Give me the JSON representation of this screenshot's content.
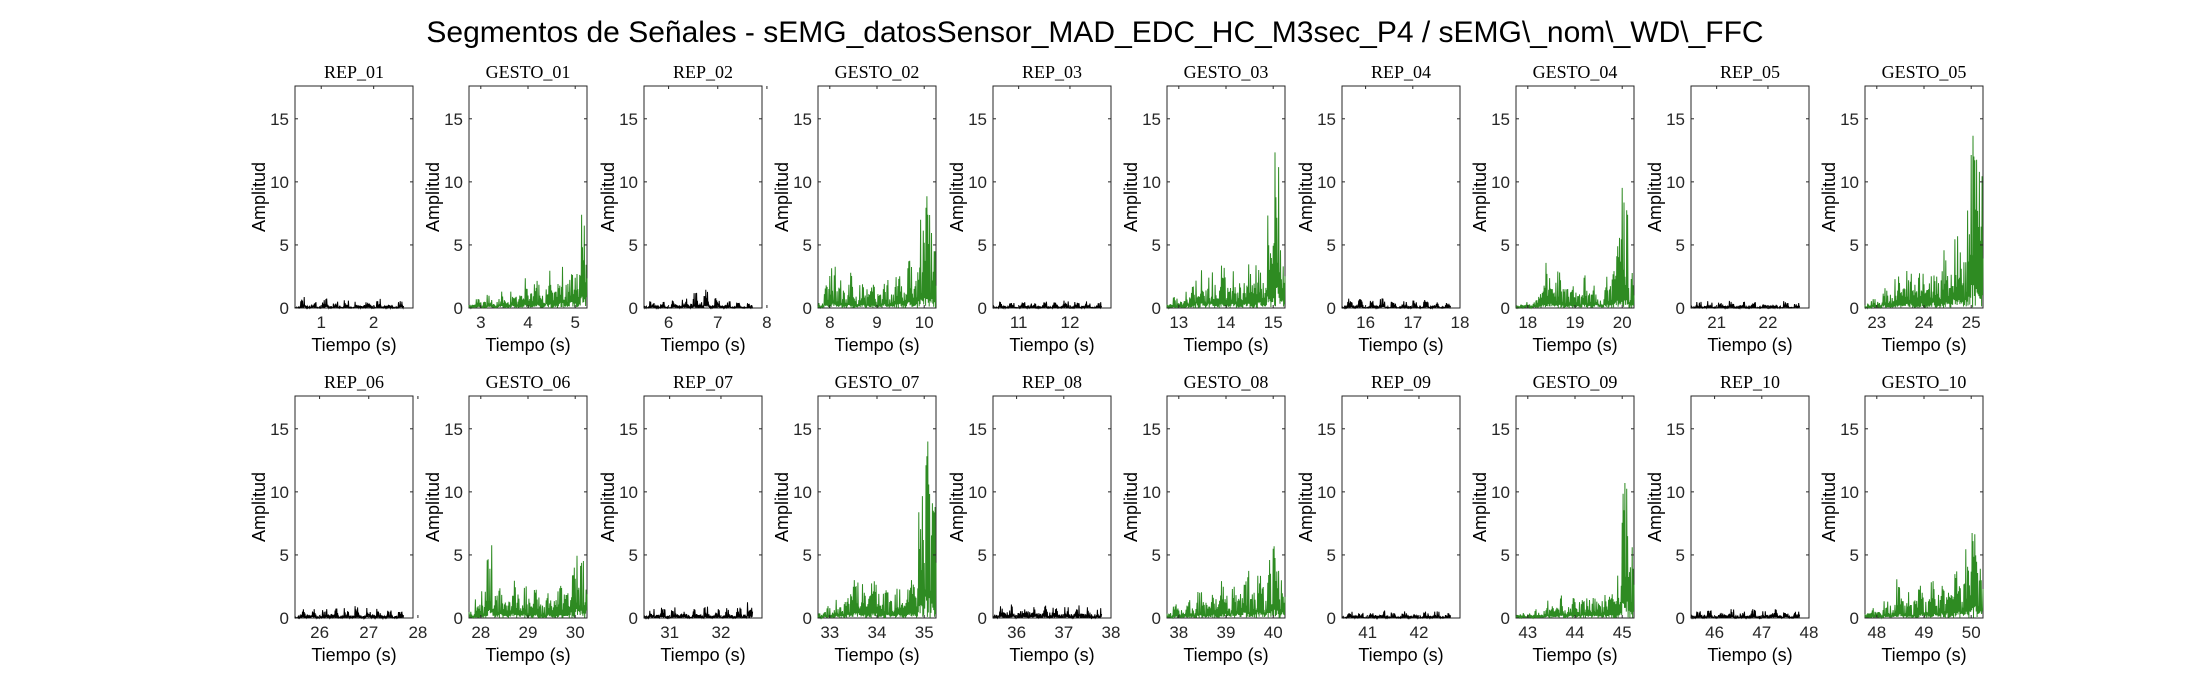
{
  "figure": {
    "title": "Segmentos de Señales - sEMG_datosSensor_MAD_EDC_HC_M3sec_P4 / sEMG\\_nom\\_WD\\_FFC",
    "colors": {
      "rep": "#000000",
      "gesto": "#2e8b22"
    }
  },
  "chart_data": [
    {
      "type": "line",
      "title": "REP_01",
      "kind": "rep",
      "xlabel": "Tiempo (s)",
      "ylabel": "Amplitud",
      "xlim": [
        0.5,
        2.75
      ],
      "ylim": [
        0,
        17.6
      ],
      "xticks": [
        1,
        2
      ],
      "yticks": [
        0,
        5,
        10,
        15
      ],
      "grid": false,
      "series": [
        {
          "values": [
            0.12,
            0.92,
            0.18,
            0.6,
            0.1,
            0.8,
            0.2,
            0.55,
            0.15,
            0.7,
            0.1,
            0.65,
            0.25,
            0.5,
            0.12,
            0.75,
            0.2,
            0.45,
            0.1,
            0.6
          ]
        }
      ]
    },
    {
      "type": "line",
      "title": "GESTO_01",
      "kind": "gesto",
      "xlabel": "Tiempo (s)",
      "ylabel": "Amplitud",
      "xlim": [
        2.75,
        5.25
      ],
      "ylim": [
        0,
        17.6
      ],
      "xticks": [
        3,
        4,
        5
      ],
      "yticks": [
        0,
        5,
        10,
        15
      ],
      "grid": false,
      "series": [
        {
          "values": [
            0.3,
            0.9,
            0.5,
            1.1,
            0.6,
            1.5,
            0.8,
            1.9,
            1.0,
            2.4,
            1.2,
            2.7,
            1.4,
            3.0,
            1.6,
            3.4,
            2.0,
            4.2,
            3.0,
            8.6
          ]
        }
      ]
    },
    {
      "type": "line",
      "title": "REP_02",
      "kind": "rep",
      "xlabel": "Tiempo (s)",
      "ylabel": "Amplitud",
      "xlim": [
        5.5,
        7.9
      ],
      "ylim": [
        0,
        17.6
      ],
      "xticks": [
        6,
        7,
        8
      ],
      "yticks": [
        0,
        5,
        10,
        15
      ],
      "grid": false,
      "series": [
        {
          "values": [
            0.15,
            0.6,
            0.2,
            0.5,
            0.1,
            0.7,
            0.3,
            0.9,
            0.4,
            1.3,
            0.5,
            1.5,
            0.3,
            0.8,
            0.2,
            0.6,
            0.15,
            0.5,
            0.1,
            0.4
          ]
        }
      ]
    },
    {
      "type": "line",
      "title": "GESTO_02",
      "kind": "gesto",
      "xlabel": "Tiempo (s)",
      "ylabel": "Amplitud",
      "xlim": [
        7.75,
        10.25
      ],
      "ylim": [
        0,
        17.6
      ],
      "xticks": [
        8,
        9,
        10
      ],
      "yticks": [
        0,
        5,
        10,
        15
      ],
      "grid": false,
      "series": [
        {
          "values": [
            0.5,
            1.8,
            3.3,
            2.2,
            1.4,
            2.8,
            1.1,
            2.4,
            1.6,
            2.0,
            1.2,
            2.6,
            1.5,
            3.2,
            2.0,
            4.0,
            3.0,
            7.5,
            9.0,
            6.0
          ]
        }
      ]
    },
    {
      "type": "line",
      "title": "REP_03",
      "kind": "rep",
      "xlabel": "Tiempo (s)",
      "ylabel": "Amplitud",
      "xlim": [
        10.5,
        12.8
      ],
      "ylim": [
        0,
        17.6
      ],
      "xticks": [
        11,
        12
      ],
      "yticks": [
        0,
        5,
        10,
        15
      ],
      "grid": false,
      "series": [
        {
          "values": [
            0.12,
            0.55,
            0.18,
            0.5,
            0.1,
            0.6,
            0.2,
            0.45,
            0.15,
            0.55,
            0.1,
            0.5,
            0.2,
            0.6,
            0.12,
            0.5,
            0.18,
            0.55,
            0.1,
            0.5
          ]
        }
      ]
    },
    {
      "type": "line",
      "title": "GESTO_03",
      "kind": "gesto",
      "xlabel": "Tiempo (s)",
      "ylabel": "Amplitud",
      "xlim": [
        12.75,
        15.25
      ],
      "ylim": [
        0,
        17.6
      ],
      "xticks": [
        13,
        14,
        15
      ],
      "yticks": [
        0,
        5,
        10,
        15
      ],
      "grid": false,
      "series": [
        {
          "values": [
            0.4,
            0.9,
            0.6,
            1.5,
            2.5,
            3.2,
            1.8,
            2.9,
            2.0,
            3.4,
            1.6,
            3.0,
            2.2,
            3.6,
            2.8,
            4.2,
            3.5,
            8.0,
            14.2,
            8.0
          ]
        }
      ]
    },
    {
      "type": "line",
      "title": "REP_04",
      "kind": "rep",
      "xlabel": "Tiempo (s)",
      "ylabel": "Amplitud",
      "xlim": [
        15.5,
        18.0
      ],
      "ylim": [
        0,
        17.6
      ],
      "xticks": [
        16,
        17,
        18
      ],
      "yticks": [
        0,
        5,
        10,
        15
      ],
      "grid": false,
      "series": [
        {
          "values": [
            0.12,
            0.75,
            0.2,
            0.7,
            0.1,
            0.6,
            0.25,
            0.8,
            0.15,
            0.65,
            0.1,
            0.7,
            0.2,
            0.6,
            0.12,
            0.75,
            0.18,
            0.6,
            0.1,
            0.5
          ]
        }
      ]
    },
    {
      "type": "line",
      "title": "GESTO_04",
      "kind": "gesto",
      "xlabel": "Tiempo (s)",
      "ylabel": "Amplitud",
      "xlim": [
        17.75,
        20.25
      ],
      "ylim": [
        0,
        17.6
      ],
      "xticks": [
        18,
        19,
        20
      ],
      "yticks": [
        0,
        5,
        10,
        15
      ],
      "grid": false,
      "series": [
        {
          "values": [
            0.3,
            0.6,
            0.4,
            0.9,
            2.4,
            3.6,
            2.0,
            3.2,
            1.6,
            2.6,
            1.3,
            2.8,
            1.5,
            2.4,
            1.2,
            2.8,
            3.6,
            6.0,
            9.8,
            3.0
          ]
        }
      ]
    },
    {
      "type": "line",
      "title": "REP_05",
      "kind": "rep",
      "xlabel": "Tiempo (s)",
      "ylabel": "Amplitud",
      "xlim": [
        20.5,
        22.8
      ],
      "ylim": [
        0,
        17.6
      ],
      "xticks": [
        21,
        22
      ],
      "yticks": [
        0,
        5,
        10,
        15
      ],
      "grid": false,
      "series": [
        {
          "values": [
            0.12,
            0.5,
            0.18,
            0.55,
            0.1,
            0.45,
            0.2,
            0.6,
            0.12,
            0.5,
            0.15,
            0.55,
            0.1,
            0.5,
            0.2,
            0.45,
            0.12,
            0.55,
            0.1,
            0.5
          ]
        }
      ]
    },
    {
      "type": "line",
      "title": "GESTO_05",
      "kind": "gesto",
      "xlabel": "Tiempo (s)",
      "ylabel": "Amplitud",
      "xlim": [
        22.75,
        25.25
      ],
      "ylim": [
        0,
        17.6
      ],
      "xticks": [
        23,
        24,
        25
      ],
      "yticks": [
        0,
        5,
        10,
        15
      ],
      "grid": false,
      "series": [
        {
          "values": [
            0.4,
            0.8,
            0.6,
            1.8,
            1.2,
            2.6,
            1.6,
            3.0,
            2.0,
            3.4,
            2.2,
            4.2,
            2.5,
            4.8,
            3.0,
            6.0,
            4.5,
            8.0,
            16.3,
            11.0
          ]
        }
      ]
    },
    {
      "type": "line",
      "title": "REP_06",
      "kind": "rep",
      "xlabel": "Tiempo (s)",
      "ylabel": "Amplitud",
      "xlim": [
        25.5,
        27.9
      ],
      "ylim": [
        0,
        17.6
      ],
      "xticks": [
        26,
        27,
        28
      ],
      "yticks": [
        0,
        5,
        10,
        15
      ],
      "grid": false,
      "series": [
        {
          "values": [
            0.15,
            0.7,
            0.3,
            0.8,
            0.2,
            0.75,
            0.35,
            0.9,
            0.25,
            0.8,
            0.3,
            0.95,
            0.2,
            0.85,
            0.3,
            0.8,
            0.2,
            0.75,
            0.15,
            0.6
          ]
        }
      ]
    },
    {
      "type": "line",
      "title": "GESTO_06",
      "kind": "gesto",
      "xlabel": "Tiempo (s)",
      "ylabel": "Amplitud",
      "xlim": [
        27.75,
        30.25
      ],
      "ylim": [
        0,
        17.6
      ],
      "xticks": [
        28,
        29,
        30
      ],
      "yticks": [
        0,
        5,
        10,
        15
      ],
      "grid": false,
      "series": [
        {
          "values": [
            0.5,
            1.5,
            2.2,
            6.0,
            1.8,
            2.8,
            1.5,
            3.0,
            2.0,
            2.6,
            1.6,
            2.4,
            1.2,
            2.2,
            1.5,
            2.8,
            2.0,
            4.0,
            6.0,
            5.0
          ]
        }
      ]
    },
    {
      "type": "line",
      "title": "REP_07",
      "kind": "rep",
      "xlabel": "Tiempo (s)",
      "ylabel": "Amplitud",
      "xlim": [
        30.5,
        32.8
      ],
      "ylim": [
        0,
        17.6
      ],
      "xticks": [
        31,
        32
      ],
      "yticks": [
        0,
        5,
        10,
        15
      ],
      "grid": false,
      "series": [
        {
          "values": [
            0.15,
            0.8,
            0.3,
            0.9,
            0.2,
            0.85,
            0.35,
            0.95,
            0.25,
            0.8,
            0.3,
            0.9,
            0.2,
            0.85,
            0.3,
            0.8,
            0.25,
            0.9,
            0.4,
            1.3
          ]
        }
      ]
    },
    {
      "type": "line",
      "title": "GESTO_07",
      "kind": "gesto",
      "xlabel": "Tiempo (s)",
      "ylabel": "Amplitud",
      "xlim": [
        32.75,
        35.25
      ],
      "ylim": [
        0,
        17.6
      ],
      "xticks": [
        33,
        34,
        35
      ],
      "yticks": [
        0,
        5,
        10,
        15
      ],
      "grid": false,
      "series": [
        {
          "values": [
            0.4,
            1.0,
            0.8,
            1.6,
            1.4,
            2.4,
            3.5,
            2.8,
            1.8,
            3.0,
            2.0,
            2.4,
            1.6,
            2.8,
            2.0,
            3.2,
            3.0,
            10.0,
            15.0,
            11.0
          ]
        }
      ]
    },
    {
      "type": "line",
      "title": "REP_08",
      "kind": "rep",
      "xlabel": "Tiempo (s)",
      "ylabel": "Amplitud",
      "xlim": [
        35.5,
        38.0
      ],
      "ylim": [
        0,
        17.6
      ],
      "xticks": [
        36,
        37,
        38
      ],
      "yticks": [
        0,
        5,
        10,
        15
      ],
      "grid": false,
      "series": [
        {
          "values": [
            0.3,
            1.0,
            0.5,
            1.1,
            0.4,
            0.9,
            0.6,
            1.2,
            0.4,
            1.0,
            0.5,
            1.1,
            0.35,
            0.95,
            0.5,
            1.15,
            0.4,
            1.0,
            0.3,
            0.8
          ]
        }
      ]
    },
    {
      "type": "line",
      "title": "GESTO_08",
      "kind": "gesto",
      "xlabel": "Tiempo (s)",
      "ylabel": "Amplitud",
      "xlim": [
        37.75,
        40.25
      ],
      "ylim": [
        0,
        17.6
      ],
      "xticks": [
        38,
        39,
        40
      ],
      "yticks": [
        0,
        5,
        10,
        15
      ],
      "grid": false,
      "series": [
        {
          "values": [
            0.4,
            1.2,
            0.7,
            1.5,
            1.0,
            2.2,
            1.4,
            2.6,
            1.6,
            3.0,
            1.8,
            3.4,
            2.2,
            3.8,
            2.4,
            4.2,
            2.8,
            4.6,
            6.0,
            4.0
          ]
        }
      ]
    },
    {
      "type": "line",
      "title": "REP_09",
      "kind": "rep",
      "xlabel": "Tiempo (s)",
      "ylabel": "Amplitud",
      "xlim": [
        40.5,
        42.8
      ],
      "ylim": [
        0,
        17.6
      ],
      "xticks": [
        41,
        42
      ],
      "yticks": [
        0,
        5,
        10,
        15
      ],
      "grid": false,
      "series": [
        {
          "values": [
            0.12,
            0.6,
            0.2,
            0.55,
            0.1,
            0.5,
            0.25,
            0.6,
            0.15,
            0.5,
            0.1,
            0.55,
            0.2,
            0.6,
            0.12,
            0.5,
            0.18,
            0.55,
            0.1,
            0.5
          ]
        }
      ]
    },
    {
      "type": "line",
      "title": "GESTO_09",
      "kind": "gesto",
      "xlabel": "Tiempo (s)",
      "ylabel": "Amplitud",
      "xlim": [
        42.75,
        45.25
      ],
      "ylim": [
        0,
        17.6
      ],
      "xticks": [
        43,
        44,
        45
      ],
      "yticks": [
        0,
        5,
        10,
        15
      ],
      "grid": false,
      "series": [
        {
          "values": [
            0.3,
            0.6,
            0.4,
            0.8,
            0.6,
            1.4,
            1.0,
            1.8,
            1.2,
            1.6,
            1.4,
            2.0,
            1.6,
            2.2,
            1.4,
            2.6,
            2.0,
            3.6,
            11.0,
            6.0
          ]
        }
      ]
    },
    {
      "type": "line",
      "title": "REP_10",
      "kind": "rep",
      "xlabel": "Tiempo (s)",
      "ylabel": "Amplitud",
      "xlim": [
        45.5,
        48.0
      ],
      "ylim": [
        0,
        17.6
      ],
      "xticks": [
        46,
        47,
        48
      ],
      "yticks": [
        0,
        5,
        10,
        15
      ],
      "grid": false,
      "series": [
        {
          "values": [
            0.15,
            0.65,
            0.25,
            0.7,
            0.2,
            0.6,
            0.3,
            0.75,
            0.2,
            0.65,
            0.25,
            0.7,
            0.2,
            0.6,
            0.3,
            0.7,
            0.2,
            0.65,
            0.15,
            0.6
          ]
        }
      ]
    },
    {
      "type": "line",
      "title": "GESTO_10",
      "kind": "gesto",
      "xlabel": "Tiempo (s)",
      "ylabel": "Amplitud",
      "xlim": [
        47.75,
        50.25
      ],
      "ylim": [
        0,
        17.6
      ],
      "xticks": [
        48,
        49,
        50
      ],
      "yticks": [
        0,
        5,
        10,
        15
      ],
      "grid": false,
      "series": [
        {
          "values": [
            0.4,
            0.8,
            0.6,
            1.4,
            1.0,
            3.2,
            1.6,
            2.4,
            1.4,
            2.8,
            1.8,
            3.0,
            2.0,
            3.4,
            2.4,
            4.2,
            3.2,
            5.5,
            8.0,
            5.0
          ]
        }
      ]
    }
  ]
}
